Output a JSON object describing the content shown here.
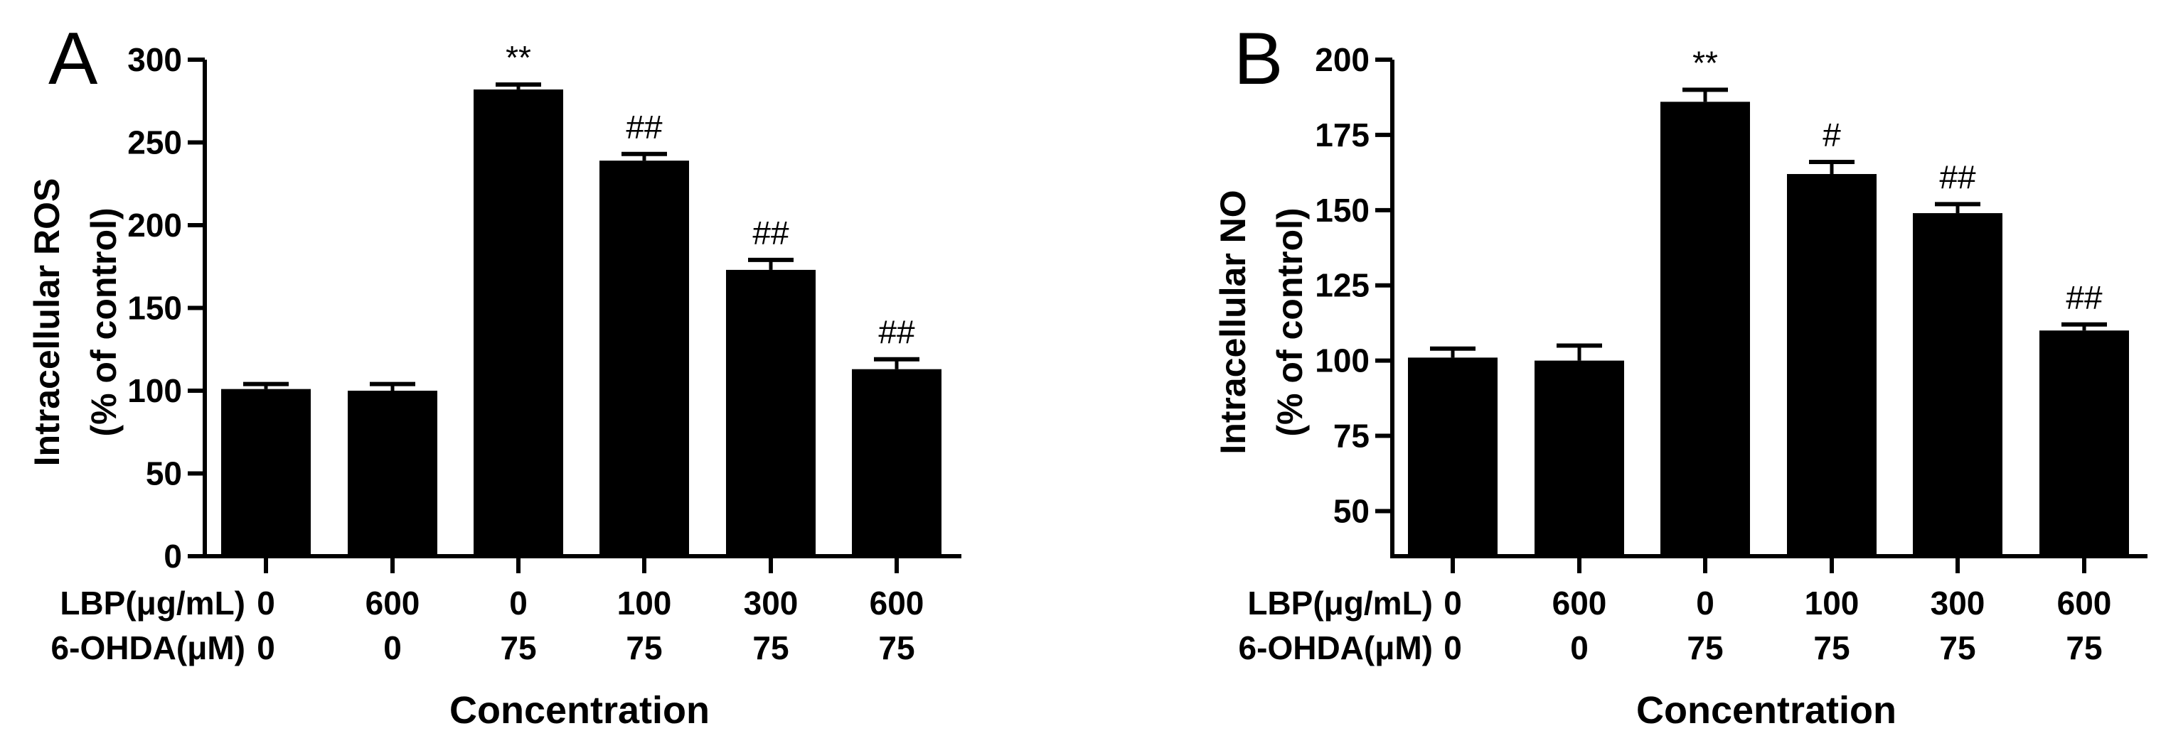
{
  "chart_data": [
    {
      "type": "bar",
      "panel_label": "A",
      "ylabel_line1": "Intracellular ROS",
      "ylabel_line2": "(% of control)",
      "xlabel": "Concentration",
      "ylim": [
        0,
        300
      ],
      "yticks": [
        0,
        50,
        100,
        150,
        200,
        250,
        300
      ],
      "row_labels": [
        "LBP(μg/mL)",
        "6-OHDA(μM)"
      ],
      "categories": [
        {
          "lbp": "0",
          "ohda": "0"
        },
        {
          "lbp": "600",
          "ohda": "0"
        },
        {
          "lbp": "0",
          "ohda": "75"
        },
        {
          "lbp": "100",
          "ohda": "75"
        },
        {
          "lbp": "300",
          "ohda": "75"
        },
        {
          "lbp": "600",
          "ohda": "75"
        }
      ],
      "values": [
        101,
        100,
        282,
        239,
        173,
        113
      ],
      "errors": [
        3,
        4,
        3,
        4,
        6,
        6
      ],
      "annotations": [
        "",
        "",
        "**",
        "##",
        "##",
        "##"
      ],
      "bar_color": "#000000"
    },
    {
      "type": "bar",
      "panel_label": "B",
      "ylabel_line1": "Intracellular NO",
      "ylabel_line2": "(% of control)",
      "xlabel": "Concentration",
      "ylim": [
        35,
        200
      ],
      "yticks": [
        50,
        75,
        100,
        125,
        150,
        175,
        200
      ],
      "row_labels": [
        "LBP(μg/mL)",
        "6-OHDA(μM)"
      ],
      "categories": [
        {
          "lbp": "0",
          "ohda": "0"
        },
        {
          "lbp": "600",
          "ohda": "0"
        },
        {
          "lbp": "0",
          "ohda": "75"
        },
        {
          "lbp": "100",
          "ohda": "75"
        },
        {
          "lbp": "300",
          "ohda": "75"
        },
        {
          "lbp": "600",
          "ohda": "75"
        }
      ],
      "values": [
        101,
        100,
        186,
        162,
        149,
        110
      ],
      "errors": [
        3,
        5,
        4,
        4,
        3,
        2
      ],
      "annotations": [
        "",
        "",
        "**",
        "#",
        "##",
        "##"
      ],
      "bar_color": "#000000"
    }
  ]
}
